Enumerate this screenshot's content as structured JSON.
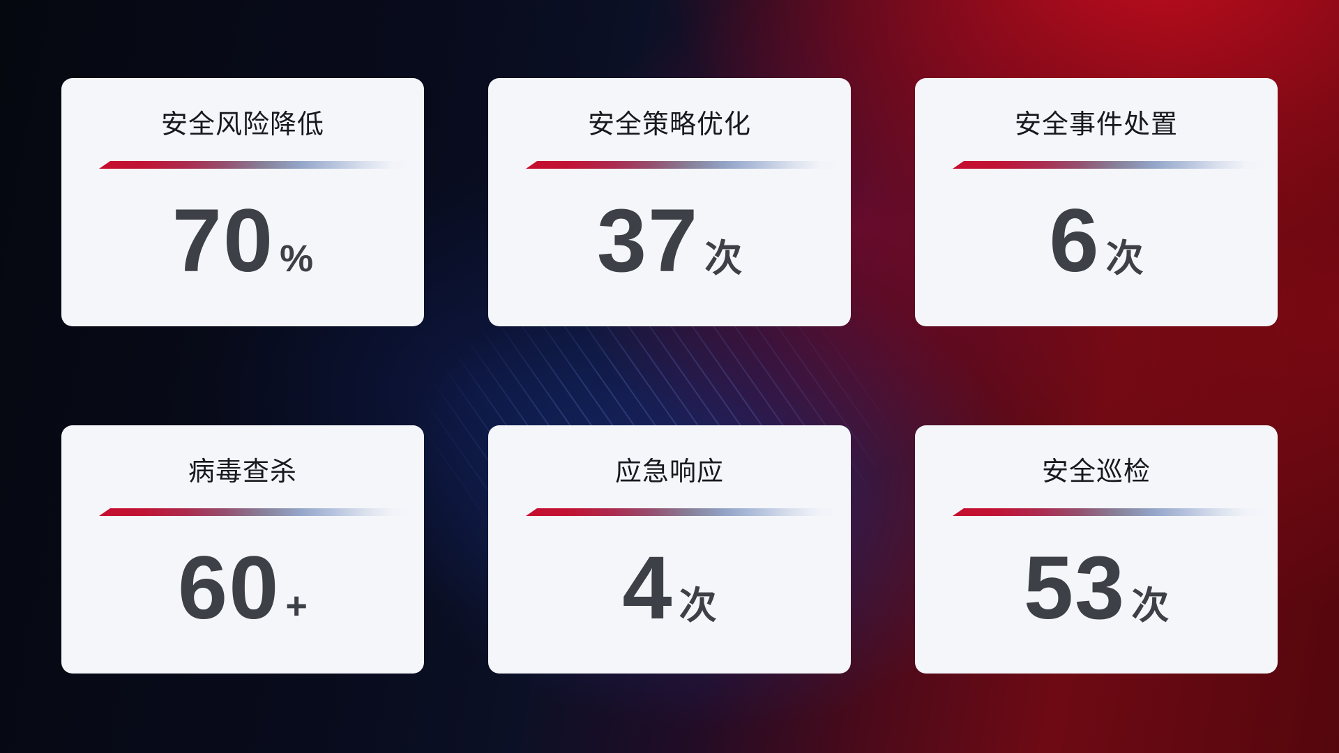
{
  "chart_data": {
    "type": "table",
    "categories": [
      "安全风险降低",
      "安全策略优化",
      "安全事件处置",
      "病毒查杀",
      "应急响应",
      "安全巡检"
    ],
    "values": [
      70,
      37,
      6,
      60,
      4,
      53
    ],
    "units": [
      "%",
      "次",
      "次",
      "+",
      "次",
      "次"
    ],
    "legend": "none",
    "layout": "2 rows x 3 columns of KPI stat cards on dark red-blue gradient background"
  },
  "cards": [
    {
      "title": "安全风险降低",
      "value": "70",
      "unit": "%"
    },
    {
      "title": "安全策略优化",
      "value": "37",
      "unit": "次"
    },
    {
      "title": "安全事件处置",
      "value": "6",
      "unit": "次"
    },
    {
      "title": "病毒查杀",
      "value": "60",
      "unit": "+"
    },
    {
      "title": "应急响应",
      "value": "4",
      "unit": "次"
    },
    {
      "title": "安全巡检",
      "value": "53",
      "unit": "次"
    }
  ],
  "colors": {
    "card_background": "#f5f6fa",
    "title_text": "#17191f",
    "value_text": "#3d4046",
    "divider_red": "#c50e2e",
    "divider_blue": "#94a6c9",
    "background_navy": "#080b1c",
    "background_red": "#8f0e18"
  }
}
